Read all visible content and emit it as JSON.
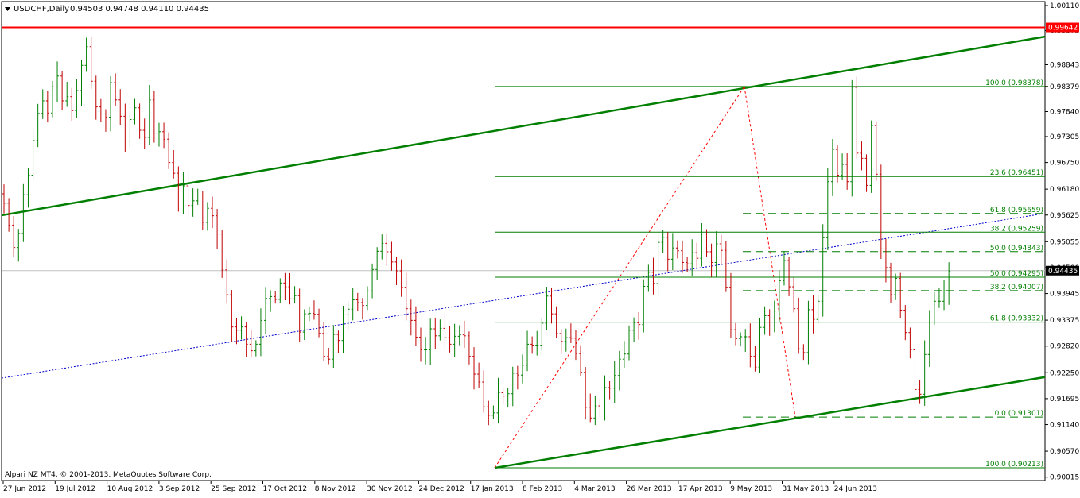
{
  "chart_data": {
    "type": "candlestick",
    "symbol_label": "USDCHF,Daily",
    "ohlc_label": "0.94503 0.94748 0.94110 0.94435",
    "copyright": "Alpari NZ MT4, © 2001-2013, MetaQuotes Software Corp.",
    "ylim": [
      0.9001,
      1.0011
    ],
    "y_ticks": [
      "1.00110",
      "0.99575",
      "0.98843",
      "0.98379",
      "0.97840",
      "0.97305",
      "0.96750",
      "0.96180",
      "0.95625",
      "0.95055",
      "0.94500",
      "0.93945",
      "0.93375",
      "0.92820",
      "0.92250",
      "0.91695",
      "0.91140",
      "0.90570",
      "0.90015"
    ],
    "x_ticks": [
      "27 Jun 2012",
      "19 Jul 2012",
      "10 Aug 2012",
      "3 Sep 2012",
      "25 Sep 2012",
      "17 Oct 2012",
      "8 Nov 2012",
      "30 Nov 2012",
      "24 Dec 2012",
      "17 Jan 2013",
      "8 Feb 2013",
      "4 Mar 2013",
      "26 Mar 2013",
      "17 Apr 2013",
      "9 May 2013",
      "31 May 2013",
      "24 Jun 2013"
    ],
    "current_price": {
      "value": 0.94435,
      "label": "0.94435"
    },
    "resistance_level": {
      "value": 0.99642,
      "label": "0.99642"
    },
    "fib_large": {
      "levels": [
        {
          "label": "100.0 (0.98378)",
          "value": 0.98378
        },
        {
          "label": "23.6 (0.96451)",
          "value": 0.96451
        },
        {
          "label": "38.2 (0.95259)",
          "value": 0.95259
        },
        {
          "label": "50.0 (0.94295)",
          "value": 0.94295
        },
        {
          "label": "61.8 (0.93332)",
          "value": 0.93332
        },
        {
          "label": "100.0 (0.90213)",
          "value": 0.90213
        }
      ]
    },
    "fib_small": {
      "levels": [
        {
          "label": "61.8 (0.95659)",
          "value": 0.95659
        },
        {
          "label": "50.0 (0.94843)",
          "value": 0.94843
        },
        {
          "label": "38.2 (0.94007)",
          "value": 0.94007
        },
        {
          "label": "0.0 (0.91301)",
          "value": 0.91301
        }
      ]
    },
    "closes": [
      0.9588,
      0.9541,
      0.9493,
      0.9523,
      0.9606,
      0.9648,
      0.9722,
      0.978,
      0.9807,
      0.9781,
      0.9837,
      0.986,
      0.9807,
      0.9816,
      0.9786,
      0.9829,
      0.9883,
      0.9923,
      0.9849,
      0.9794,
      0.9779,
      0.9772,
      0.9846,
      0.9809,
      0.9774,
      0.9721,
      0.9767,
      0.9792,
      0.9744,
      0.9729,
      0.9809,
      0.9738,
      0.9741,
      0.9725,
      0.9675,
      0.9652,
      0.9597,
      0.9625,
      0.9583,
      0.9593,
      0.9597,
      0.9547,
      0.9577,
      0.9561,
      0.9522,
      0.9445,
      0.9392,
      0.9323,
      0.9316,
      0.9323,
      0.9286,
      0.9272,
      0.9286,
      0.9337,
      0.9384,
      0.9388,
      0.9382,
      0.9417,
      0.9409,
      0.9383,
      0.939,
      0.9312,
      0.9351,
      0.9352,
      0.935,
      0.9309,
      0.926,
      0.9254,
      0.9307,
      0.9294,
      0.9349,
      0.9361,
      0.9381,
      0.9375,
      0.9369,
      0.94,
      0.9446,
      0.9485,
      0.9502,
      0.9484,
      0.9462,
      0.9443,
      0.9408,
      0.9362,
      0.9337,
      0.9301,
      0.9274,
      0.9274,
      0.9319,
      0.9304,
      0.932,
      0.93,
      0.9286,
      0.9303,
      0.9306,
      0.9304,
      0.926,
      0.9222,
      0.9205,
      0.9152,
      0.9134,
      0.9139,
      0.9182,
      0.9175,
      0.918,
      0.9224,
      0.922,
      0.9241,
      0.9286,
      0.9284,
      0.9284,
      0.9331,
      0.9389,
      0.9351,
      0.9309,
      0.9292,
      0.93,
      0.9299,
      0.9266,
      0.9226,
      0.9151,
      0.9128,
      0.9154,
      0.9143,
      0.9193,
      0.9192,
      0.9219,
      0.9254,
      0.9265,
      0.9316,
      0.9332,
      0.9328,
      0.941,
      0.944,
      0.9416,
      0.9504,
      0.9515,
      0.9468,
      0.9492,
      0.9486,
      0.9461,
      0.9458,
      0.9482,
      0.947,
      0.9522,
      0.9484,
      0.9461,
      0.9501,
      0.9487,
      0.9408,
      0.9317,
      0.9298,
      0.9302,
      0.9302,
      0.926,
      0.9237,
      0.9322,
      0.9347,
      0.9325,
      0.9357,
      0.9422,
      0.9465,
      0.9409,
      0.9362,
      0.9276,
      0.9268,
      0.936,
      0.9339,
      0.9378,
      0.9514,
      0.9634,
      0.9703,
      0.9648,
      0.9671,
      0.9634,
      0.9836,
      0.9695,
      0.9684,
      0.9626,
      0.9754,
      0.965,
      0.949,
      0.945,
      0.9392,
      0.9427,
      0.9359,
      0.9311,
      0.9274,
      0.9189,
      0.9179,
      0.9264,
      0.9342,
      0.9378,
      0.9378,
      0.94,
      0.9442
    ]
  }
}
